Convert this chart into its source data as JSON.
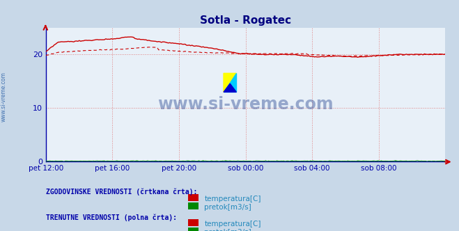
{
  "title": "Sotla - Rogatec",
  "title_color": "#000080",
  "bg_color": "#c8d8e8",
  "plot_bg_color": "#e8f0f8",
  "grid_color": "#e08080",
  "axis_color": "#0000aa",
  "watermark_text": "www.si-vreme.com",
  "watermark_color": "#1a3a8a",
  "ylim": [
    0,
    25
  ],
  "yticks": [
    0,
    10,
    20
  ],
  "xtick_labels": [
    "pet 12:00",
    "pet 16:00",
    "pet 20:00",
    "sob 00:00",
    "sob 04:00",
    "sob 08:00"
  ],
  "temp_solid_color": "#cc0000",
  "temp_dashed_color": "#cc0000",
  "pretok_solid_color": "#008800",
  "pretok_dashed_color": "#008800",
  "legend_text_color": "#2288bb",
  "legend_label1": "ZGODOVINSKE VREDNOSTI (črtkana črta):",
  "legend_label2": "TRENUTNE VREDNOSTI (polna črta):",
  "legend_item1": "temperatura[C]",
  "legend_item2": "pretok[m3/s]",
  "sidebar_text": "www.si-vreme.com",
  "n_points": 288
}
